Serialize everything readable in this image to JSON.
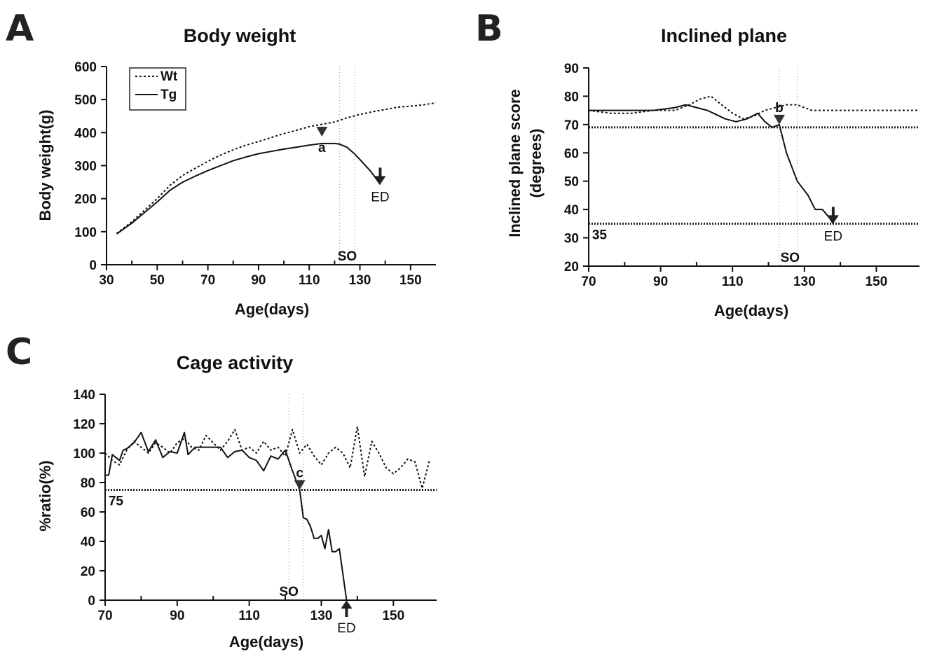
{
  "chart_data": [
    {
      "panel": "A",
      "type": "line",
      "title": "Body weight",
      "xlabel": "Age(days)",
      "ylabel": "Body weight(g)",
      "xlim": [
        30,
        160
      ],
      "ylim": [
        0,
        600
      ],
      "xticks": [
        30,
        50,
        70,
        90,
        110,
        130,
        150
      ],
      "yticks": [
        0,
        100,
        200,
        300,
        400,
        500,
        600
      ],
      "legend": {
        "position": "top-left",
        "entries": [
          {
            "label": "Wt",
            "style": "dotted"
          },
          {
            "label": "Tg",
            "style": "solid"
          }
        ]
      },
      "series": [
        {
          "name": "Wt",
          "style": "dotted",
          "x": [
            34,
            40,
            45,
            50,
            55,
            60,
            65,
            70,
            75,
            80,
            85,
            90,
            95,
            100,
            105,
            110,
            115,
            120,
            125,
            130,
            135,
            140,
            145,
            150,
            155,
            160
          ],
          "y": [
            95,
            130,
            165,
            200,
            240,
            270,
            292,
            313,
            332,
            348,
            362,
            373,
            385,
            397,
            407,
            418,
            425,
            432,
            445,
            455,
            463,
            470,
            477,
            480,
            484,
            490
          ]
        },
        {
          "name": "Tg",
          "style": "solid",
          "x": [
            34,
            40,
            45,
            50,
            55,
            60,
            65,
            70,
            75,
            80,
            85,
            90,
            95,
            100,
            105,
            110,
            115,
            120,
            122,
            125,
            128,
            131,
            134,
            136,
            138
          ],
          "y": [
            93,
            126,
            158,
            190,
            225,
            250,
            268,
            285,
            300,
            315,
            326,
            336,
            343,
            350,
            356,
            362,
            367,
            367,
            365,
            355,
            335,
            310,
            285,
            265,
            243
          ]
        }
      ],
      "vlines": [
        122,
        128
      ],
      "annotations": [
        {
          "text": "a",
          "marker": "down-triangle",
          "x": 115,
          "y": 388
        },
        {
          "text": "ED",
          "marker": "down-arrow",
          "x": 138,
          "y": 243
        },
        {
          "text": "SO",
          "x": 125,
          "y": 0
        }
      ]
    },
    {
      "panel": "B",
      "type": "line",
      "title": "Inclined plane",
      "xlabel": "Age(days)",
      "ylabel_lines": [
        "Inclined plane score",
        "(degrees)"
      ],
      "xlim": [
        70,
        162
      ],
      "ylim": [
        20,
        90
      ],
      "xticks": [
        70,
        90,
        110,
        130,
        150
      ],
      "yticks": [
        20,
        30,
        40,
        50,
        60,
        70,
        80,
        90
      ],
      "hlines": [
        69,
        35
      ],
      "series": [
        {
          "name": "Wt",
          "style": "dotted",
          "x": [
            70,
            76,
            82,
            88,
            94,
            98,
            101,
            104,
            107,
            110,
            113,
            116,
            119,
            122,
            125,
            128,
            132,
            140,
            150,
            162
          ],
          "y": [
            75,
            74,
            74,
            75,
            75,
            77,
            79,
            80,
            77,
            74,
            72,
            73,
            75,
            76,
            77,
            77,
            75,
            75,
            75,
            75
          ]
        },
        {
          "name": "Tg",
          "style": "solid",
          "x": [
            70,
            76,
            82,
            88,
            94,
            97,
            103,
            108,
            111,
            114,
            117,
            119,
            121,
            123,
            125,
            128,
            131,
            133,
            135,
            137,
            138
          ],
          "y": [
            75,
            75,
            75,
            75,
            76,
            77,
            75,
            72,
            71,
            72,
            74,
            71,
            69,
            70,
            60,
            50,
            45,
            40,
            40,
            37,
            35
          ]
        }
      ],
      "vlines": [
        123,
        128
      ],
      "annotations": [
        {
          "text": "b",
          "marker": "down-triangle",
          "x": 123,
          "y": 70
        },
        {
          "text": "ED",
          "marker": "down-arrow",
          "x": 138,
          "y": 35
        },
        {
          "text": "SO",
          "x": 126,
          "y": 20
        },
        {
          "text": "35",
          "x": 73,
          "y": 35
        }
      ]
    },
    {
      "panel": "C",
      "type": "line",
      "title": "Cage activity",
      "xlabel": "Age(days)",
      "ylabel": "%ratio(%)",
      "xlim": [
        70,
        162
      ],
      "ylim": [
        0,
        140
      ],
      "xticks": [
        70,
        90,
        110,
        130,
        150
      ],
      "yticks": [
        0,
        20,
        40,
        60,
        80,
        100,
        120,
        140
      ],
      "hlines": [
        75
      ],
      "series": [
        {
          "name": "Wt",
          "style": "dotted",
          "x": [
            70,
            72,
            74,
            76,
            78,
            80,
            82,
            84,
            86,
            88,
            90,
            92,
            94,
            96,
            98,
            100,
            102,
            104,
            106,
            108,
            110,
            112,
            114,
            116,
            118,
            120,
            122,
            124,
            126,
            128,
            130,
            132,
            134,
            136,
            138,
            140,
            142,
            144,
            146,
            148,
            150,
            152,
            154,
            156,
            158,
            160
          ],
          "y": [
            100,
            95,
            92,
            102,
            108,
            104,
            100,
            107,
            104,
            100,
            107,
            110,
            104,
            102,
            112,
            107,
            102,
            108,
            116,
            102,
            104,
            100,
            108,
            102,
            104,
            98,
            116,
            100,
            106,
            98,
            92,
            100,
            104,
            100,
            90,
            118,
            84,
            108,
            100,
            90,
            86,
            90,
            96,
            94,
            76,
            95
          ]
        },
        {
          "name": "Tg",
          "style": "solid",
          "x": [
            70,
            71,
            72,
            73,
            74,
            75,
            76,
            78,
            80,
            82,
            84,
            86,
            88,
            90,
            92,
            93,
            95,
            98,
            100,
            102,
            104,
            106,
            108,
            110,
            112,
            114,
            116,
            118,
            120,
            122,
            124,
            125,
            126,
            127,
            128,
            129,
            130,
            131,
            132,
            133,
            134,
            135,
            137
          ],
          "y": [
            85,
            85,
            99,
            97,
            95,
            102,
            103,
            107,
            114,
            101,
            109,
            97,
            101,
            100,
            114,
            99,
            104,
            104,
            104,
            104,
            97,
            101,
            102,
            97,
            95,
            88,
            98,
            96,
            102,
            88,
            75,
            56,
            55,
            50,
            42,
            42,
            44,
            35,
            48,
            33,
            33,
            35,
            0
          ]
        }
      ],
      "vlines": [
        121,
        125
      ],
      "annotations": [
        {
          "text": "c",
          "marker": "down-triangle",
          "x": 124,
          "y": 75
        },
        {
          "text": "ED",
          "marker": "up-arrow",
          "x": 137,
          "y": 0
        },
        {
          "text": "SO",
          "x": 121,
          "y": 0
        },
        {
          "text": "75",
          "x": 73,
          "y": 75
        }
      ]
    }
  ]
}
